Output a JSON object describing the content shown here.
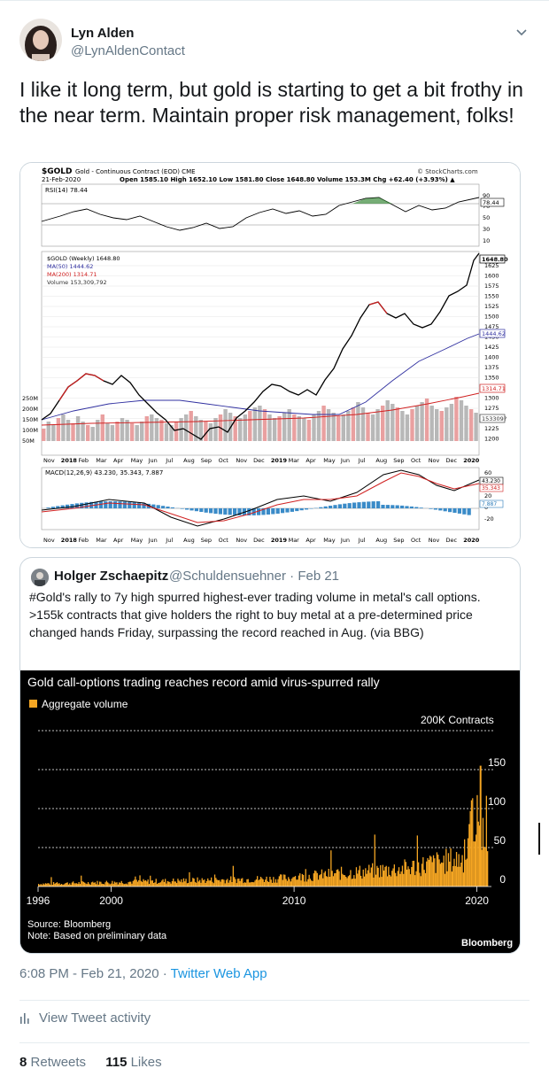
{
  "author": {
    "name": "Lyn Alden",
    "handle": "@LynAldenContact"
  },
  "tweet_text": "I like it long term, but gold is starting to get a bit frothy in the near term. Maintain proper risk management, folks!",
  "gold_chart": {
    "symbol": "$GOLD",
    "subtitle": "Gold - Continuous Contract (EOD) CME",
    "date": "21-Feb-2020",
    "ohlc_line": "Open 1585.10 High 1652.10 Low 1581.80 Close 1648.80 Volume 153.3M Chg +62.40 (+3.93%) ▲",
    "brand": "© StockCharts.com",
    "rsi_label": "RSI(14) 78.44",
    "rsi_value_badge": "78.44",
    "rsi_ticks": [
      "90",
      "70",
      "50",
      "30",
      "10"
    ],
    "legend": {
      "price": "$GOLD (Weekly) 1648.80",
      "ma50": "MA(50) 1444.62",
      "ma200": "MA(200) 1314.71",
      "volume": "Volume 153,309,792"
    },
    "price_badge": "1648.80",
    "ma50_badge": "1444.62",
    "ma200_badge": "1314.71",
    "volume_badge": "153309?",
    "price_ticks": [
      "1625",
      "1600",
      "1575",
      "1550",
      "1525",
      "1500",
      "1475",
      "1450",
      "1425",
      "1400",
      "1375",
      "1350",
      "1325",
      "1300",
      "1275",
      "1250",
      "1225",
      "1200"
    ],
    "volume_ticks": [
      "250M",
      "200M",
      "150M",
      "100M",
      "50M"
    ],
    "x_labels": [
      "Nov",
      "2018",
      "Feb",
      "Mar",
      "Apr",
      "May",
      "Jun",
      "Jul",
      "Aug",
      "Sep",
      "Oct",
      "Nov",
      "Dec",
      "2019",
      "Mar",
      "Apr",
      "May",
      "Jun",
      "Jul",
      "Aug",
      "Sep",
      "Oct",
      "Nov",
      "Dec",
      "2020"
    ],
    "macd_label": "MACD(12,26,9) 43.230, 35.343, 7.887",
    "macd_badges": [
      "43.230",
      "35.343",
      "7.887"
    ],
    "macd_ticks": [
      "60",
      "40",
      "20",
      "0",
      "-20"
    ]
  },
  "quote": {
    "name": "Holger Zschaepitz",
    "handle": "@Schuldensuehner · Feb 21",
    "text": "#Gold's rally to 7y high spurred highest-ever trading volume in metal's call options. >155k contracts that give holders the right to buy metal at a pre-determined price changed hands Friday, surpassing the record reached in Aug. (via BBG)"
  },
  "bloomberg_chart": {
    "title": "Gold call-options trading reaches record amid virus-spurred rally",
    "legend": "Aggregate volume",
    "unit_label": "200K Contracts",
    "y_ticks": [
      "150",
      "100",
      "50",
      "0"
    ],
    "x_ticks": [
      "1996",
      "2000",
      "2010",
      "2020"
    ],
    "source": "Source: Bloomberg",
    "note": "Note: Based on preliminary data",
    "brand": "Bloomberg",
    "bar_color": "#f5a623"
  },
  "chart_data": [
    {
      "type": "line",
      "title": "$GOLD",
      "series": [
        {
          "name": "$GOLD (Weekly)",
          "values": [
            1275,
            1290,
            1330,
            1345,
            1320,
            1330,
            1340,
            1305,
            1300,
            1270,
            1240,
            1210,
            1195,
            1200,
            1225,
            1215,
            1250,
            1285,
            1315,
            1305,
            1290,
            1280,
            1300,
            1345,
            1400,
            1415,
            1500,
            1525,
            1510,
            1470,
            1480,
            1560,
            1580,
            1648.8
          ]
        },
        {
          "name": "MA(50)",
          "values": [
            1265,
            1275,
            1285,
            1290,
            1290,
            1288,
            1285,
            1282,
            1278,
            1275,
            1270,
            1266,
            1262,
            1260,
            1258,
            1260,
            1262,
            1270,
            1290,
            1310,
            1340,
            1370,
            1400,
            1420,
            1444.62
          ]
        },
        {
          "name": "MA(200)",
          "values": [
            1230,
            1232,
            1234,
            1236,
            1238,
            1240,
            1242,
            1244,
            1246,
            1248,
            1250,
            1255,
            1262,
            1270,
            1280,
            1292,
            1305,
            1314.71
          ]
        }
      ],
      "ylim": [
        1200,
        1650
      ]
    },
    {
      "type": "bar",
      "title": "Gold call-options trading reaches record amid virus-spurred rally",
      "series": [
        {
          "name": "Aggregate volume"
        }
      ],
      "x_range": [
        1996,
        2020
      ],
      "ylabel": "200K Contracts",
      "ylim": [
        0,
        200
      ],
      "peak_2020": 155
    }
  ]
}
